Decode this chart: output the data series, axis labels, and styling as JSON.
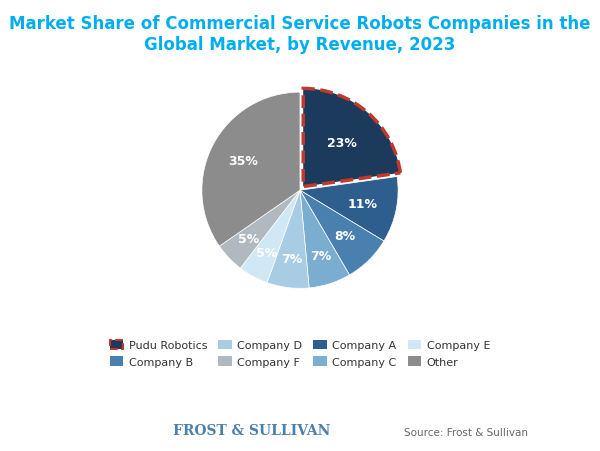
{
  "title": "Market Share of Commercial Service Robots Companies in the\nGlobal Market, by Revenue, 2023",
  "title_color": "#00AEEF",
  "labels": [
    "Pudu Robotics",
    "Company A",
    "Company B",
    "Company C",
    "Company D",
    "Company E",
    "Company F",
    "Other"
  ],
  "values": [
    23,
    11,
    8,
    7,
    7,
    5,
    5,
    35
  ],
  "colors": [
    "#1B3A5C",
    "#2E5E8E",
    "#4A80B0",
    "#7BADD0",
    "#A8CCE4",
    "#D0E8F5",
    "#B0B8C0",
    "#8C8C8C"
  ],
  "explode": [
    0.05,
    0,
    0,
    0,
    0,
    0,
    0,
    0
  ],
  "startangle": 90,
  "legend_labels": [
    "Pudu Robotics",
    "Company B",
    "Company D",
    "Company F",
    "Company A",
    "Company C",
    "Company E",
    "Other"
  ],
  "legend_colors": [
    "#1B3A5C",
    "#4A80B0",
    "#A8CCE4",
    "#B0B8C0",
    "#2E5E8E",
    "#7BADD0",
    "#D0E8F5",
    "#8C8C8C"
  ],
  "pudu_border_color": "#C0392B",
  "source_text": "Source: Frost & Sullivan",
  "frost_sullivan_text": "FROST & SULLIVAN",
  "background_color": "#FFFFFF"
}
